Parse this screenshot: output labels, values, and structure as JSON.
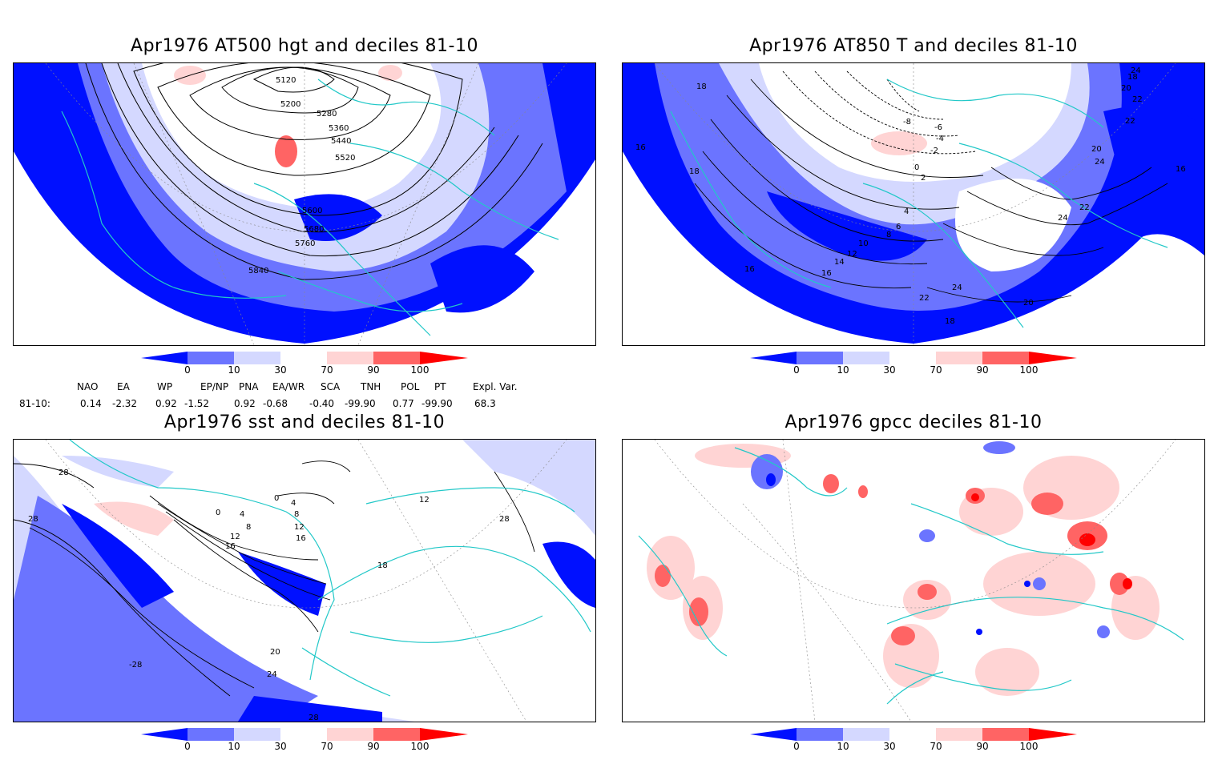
{
  "panels": [
    {
      "title": "Apr1976 AT500 hgt and deciles 81-10",
      "contour_labels": [
        "5120",
        "5200",
        "5280",
        "5360",
        "5440",
        "5520",
        "5600",
        "5680",
        "5760",
        "5840"
      ]
    },
    {
      "title": "Apr1976 AT850 T and deciles 81-10",
      "contour_labels": [
        "18",
        "16",
        "18",
        "-8",
        "-6",
        "-4",
        "-2",
        "0",
        "2",
        "4",
        "6",
        "8",
        "10",
        "12",
        "14",
        "16",
        "16",
        "22",
        "24",
        "20",
        "18",
        "20",
        "22",
        "22",
        "24",
        "24",
        "24",
        "22",
        "20",
        "18",
        "16"
      ]
    },
    {
      "title": "Apr1976 sst and deciles 81-10",
      "contour_labels": [
        "28",
        "28",
        "0",
        "4",
        "8",
        "12",
        "16",
        "0",
        "4",
        "8",
        "12",
        "16",
        "20",
        "24",
        "28",
        "28",
        "12",
        "-28",
        "18"
      ]
    },
    {
      "title": "Apr1976 gpcc deciles 81-10",
      "contour_labels": []
    }
  ],
  "colorbar": {
    "ticks": [
      "0",
      "10",
      "30",
      "70",
      "90",
      "100"
    ],
    "colors": [
      "#0010ff",
      "#6b74ff",
      "#d4d8ff",
      "#ffffff",
      "#ffd4d4",
      "#ff6464",
      "#ff0000"
    ]
  },
  "indices": {
    "headers": [
      "NAO",
      "EA",
      "WP",
      "EP/NP",
      "PNA",
      "EA/WR",
      "SCA",
      "TNH",
      "POL",
      "PT",
      "Expl. Var."
    ],
    "row_label": "81-10:",
    "values": [
      "0.14",
      "-2.32",
      "0.92",
      "-1.52",
      "0.92",
      "-0.68",
      "-0.40",
      "-99.90",
      "0.77",
      "-99.90",
      "68.3"
    ]
  },
  "map_colors": {
    "coast": "#22c8c8",
    "contour": "#000000"
  }
}
